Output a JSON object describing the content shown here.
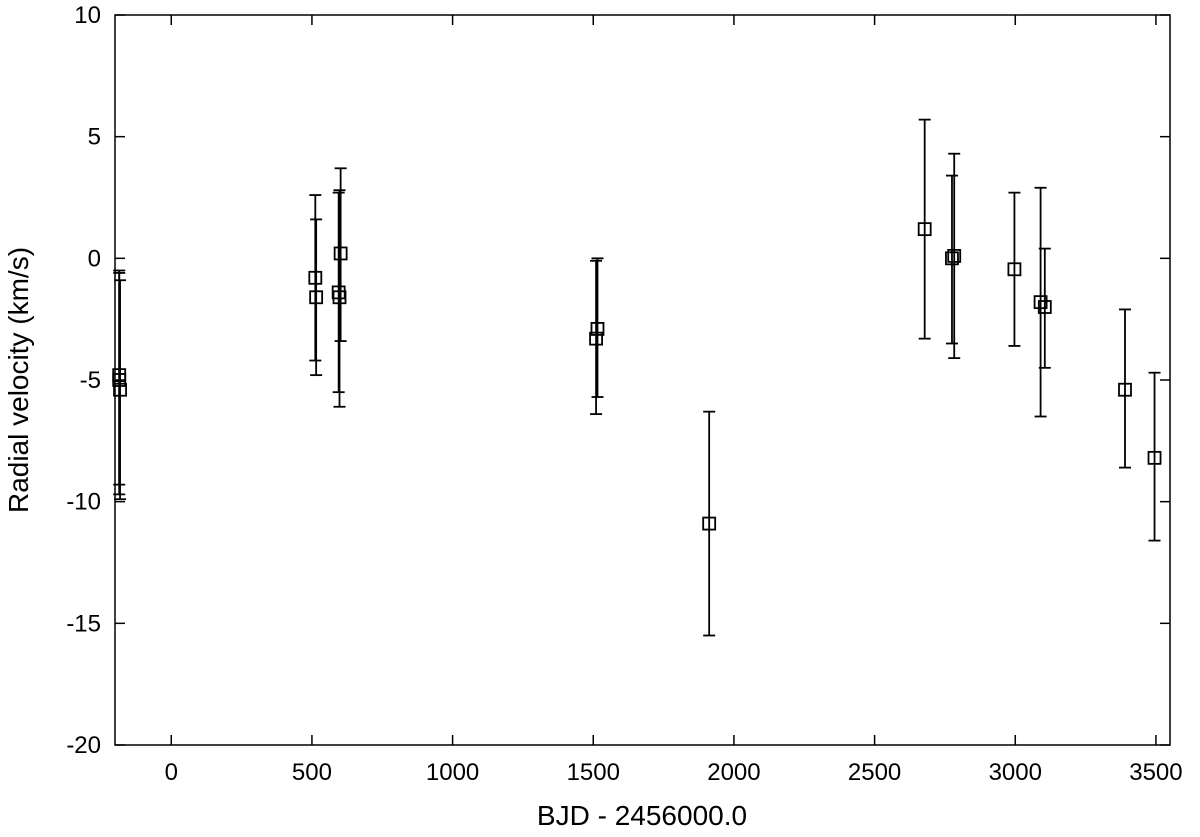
{
  "chart_data": {
    "type": "scatter",
    "title": "",
    "xlabel": "BJD - 2456000.0",
    "ylabel": "Radial velocity (km/s)",
    "xlim": [
      -200,
      3550
    ],
    "ylim": [
      -20,
      10
    ],
    "x_ticks": [
      0,
      500,
      1000,
      1500,
      2000,
      2500,
      3000,
      3500
    ],
    "y_ticks": [
      -20,
      -15,
      -10,
      -5,
      0,
      5,
      10
    ],
    "grid": false,
    "legend": "none",
    "marker": "open-square",
    "color": "#000000",
    "points": [
      {
        "x": -185,
        "y": -4.8,
        "yerr_low": -9.3,
        "yerr_high": -0.5
      },
      {
        "x": -185,
        "y": -5.0,
        "yerr_low": -9.7,
        "yerr_high": -0.6
      },
      {
        "x": -182,
        "y": -5.4,
        "yerr_low": -9.9,
        "yerr_high": -0.9
      },
      {
        "x": 512,
        "y": -0.8,
        "yerr_low": -4.2,
        "yerr_high": 2.6
      },
      {
        "x": 515,
        "y": -1.6,
        "yerr_low": -4.8,
        "yerr_high": 1.6
      },
      {
        "x": 595,
        "y": -1.4,
        "yerr_low": -5.5,
        "yerr_high": 2.7
      },
      {
        "x": 598,
        "y": -1.6,
        "yerr_low": -6.1,
        "yerr_high": 2.8
      },
      {
        "x": 602,
        "y": 0.2,
        "yerr_low": -3.4,
        "yerr_high": 3.7
      },
      {
        "x": 1510,
        "y": -3.3,
        "yerr_low": -6.4,
        "yerr_high": -0.1
      },
      {
        "x": 1515,
        "y": -2.9,
        "yerr_low": -5.7,
        "yerr_high": 0.0
      },
      {
        "x": 1912,
        "y": -10.9,
        "yerr_low": -15.5,
        "yerr_high": -6.3
      },
      {
        "x": 2678,
        "y": 1.2,
        "yerr_low": -3.3,
        "yerr_high": 5.7
      },
      {
        "x": 2775,
        "y": 0.0,
        "yerr_low": -3.5,
        "yerr_high": 3.4
      },
      {
        "x": 2783,
        "y": 0.1,
        "yerr_low": -4.1,
        "yerr_high": 4.3
      },
      {
        "x": 2997,
        "y": -0.45,
        "yerr_low": -3.6,
        "yerr_high": 2.7
      },
      {
        "x": 3090,
        "y": -1.8,
        "yerr_low": -6.5,
        "yerr_high": 2.9
      },
      {
        "x": 3105,
        "y": -2.0,
        "yerr_low": -4.5,
        "yerr_high": 0.4
      },
      {
        "x": 3390,
        "y": -5.4,
        "yerr_low": -8.6,
        "yerr_high": -2.1
      },
      {
        "x": 3495,
        "y": -8.2,
        "yerr_low": -11.6,
        "yerr_high": -4.7
      }
    ]
  }
}
